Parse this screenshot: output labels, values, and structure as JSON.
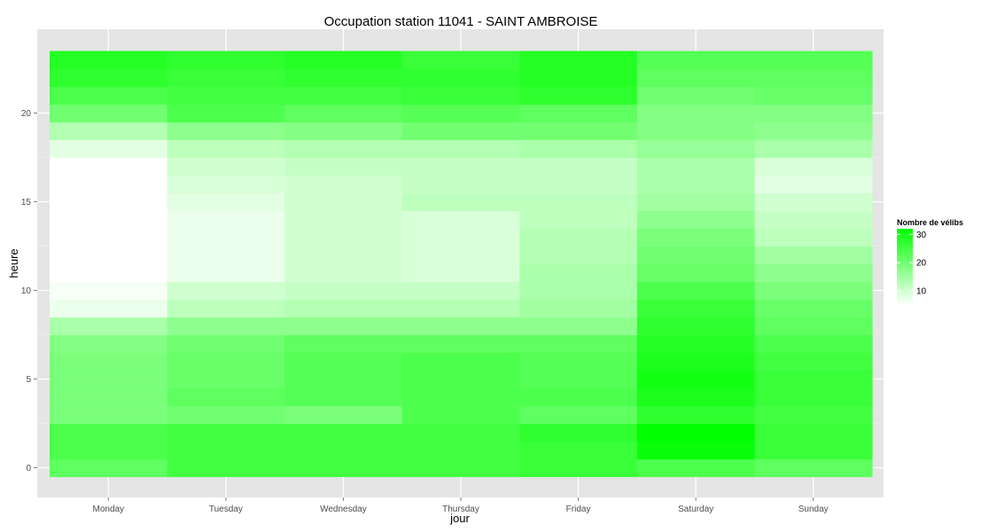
{
  "chart_data": {
    "type": "heatmap",
    "title": "Occupation station 11041 - SAINT AMBROISE",
    "xlabel": "jour",
    "ylabel": "heure",
    "categories": [
      "Monday",
      "Tuesday",
      "Wednesday",
      "Thursday",
      "Friday",
      "Saturday",
      "Sunday"
    ],
    "hours": [
      0,
      1,
      2,
      3,
      4,
      5,
      6,
      7,
      8,
      9,
      10,
      11,
      12,
      13,
      14,
      15,
      16,
      17,
      18,
      19,
      20,
      21,
      22,
      23
    ],
    "ylim": [
      -0.5,
      23.5
    ],
    "yticks": [
      0,
      5,
      10,
      15,
      20
    ],
    "values": [
      [
        22,
        25,
        25,
        25,
        26,
        24,
        22
      ],
      [
        24,
        25,
        25,
        25,
        26,
        31,
        26
      ],
      [
        24,
        25,
        25,
        25,
        27,
        32,
        26
      ],
      [
        19,
        20,
        19,
        24,
        22,
        27,
        25
      ],
      [
        19,
        22,
        23,
        24,
        24,
        29,
        26
      ],
      [
        19,
        21,
        23,
        24,
        23,
        30,
        26
      ],
      [
        19,
        21,
        23,
        24,
        23,
        29,
        25
      ],
      [
        18,
        20,
        22,
        22,
        22,
        28,
        24
      ],
      [
        14,
        17,
        17,
        17,
        17,
        27,
        22
      ],
      [
        7,
        12,
        13,
        13,
        15,
        26,
        21
      ],
      [
        6,
        10,
        11,
        11,
        14,
        24,
        19
      ],
      [
        4,
        7,
        10,
        9,
        14,
        21,
        17
      ],
      [
        4,
        7,
        10,
        9,
        13,
        20,
        15
      ],
      [
        4,
        7,
        10,
        9,
        13,
        19,
        12
      ],
      [
        4,
        7,
        10,
        9,
        12,
        17,
        11
      ],
      [
        4,
        8,
        10,
        12,
        12,
        15,
        10
      ],
      [
        4,
        9,
        10,
        11,
        11,
        14,
        8
      ],
      [
        5,
        10,
        11,
        11,
        11,
        14,
        9
      ],
      [
        8,
        12,
        13,
        13,
        14,
        16,
        14
      ],
      [
        13,
        17,
        18,
        20,
        20,
        18,
        17
      ],
      [
        20,
        24,
        22,
        23,
        22,
        18,
        18
      ],
      [
        24,
        25,
        25,
        26,
        27,
        20,
        21
      ],
      [
        27,
        26,
        27,
        27,
        28,
        22,
        22
      ],
      [
        28,
        27,
        28,
        26,
        28,
        23,
        23
      ]
    ],
    "color_range": [
      5,
      32
    ],
    "low_color": "#ffffff",
    "high_color": "#00ff00",
    "panel_color": "#e5e5e5",
    "grid": true,
    "legend": {
      "title": "Nombre de vélibs",
      "ticks": [
        10,
        20,
        30
      ],
      "placement": "right"
    }
  }
}
